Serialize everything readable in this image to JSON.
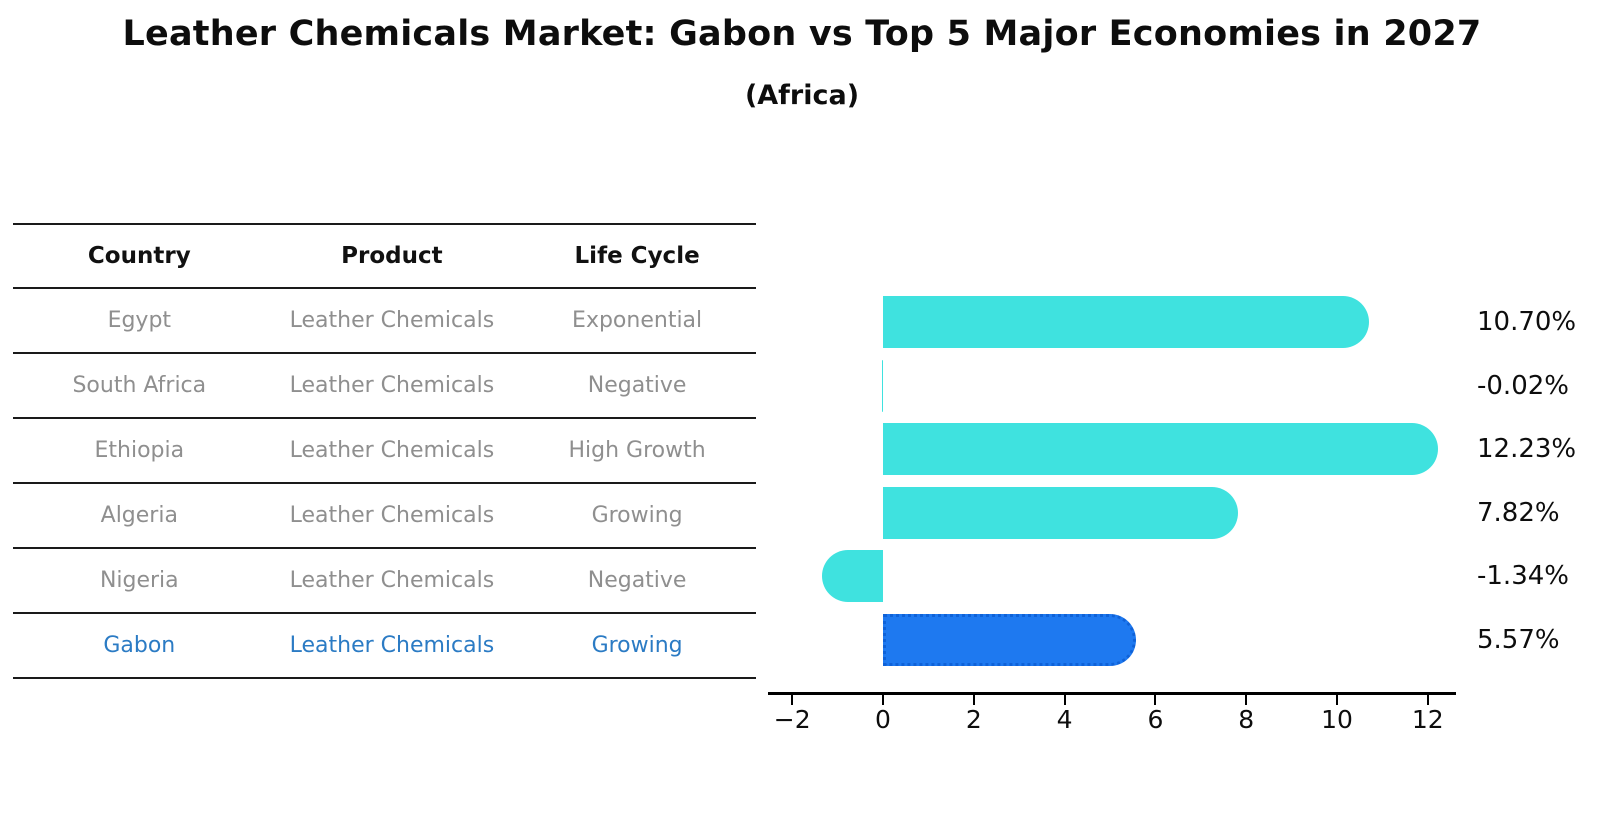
{
  "title": "Leather Chemicals Market: Gabon vs Top 5 Major Economies in 2027",
  "subtitle": "(Africa)",
  "table": {
    "headers": [
      "Country",
      "Product",
      "Life Cycle"
    ],
    "rows": [
      {
        "country": "Egypt",
        "product": "Leather Chemicals",
        "life_cycle": "Exponential",
        "highlight": false
      },
      {
        "country": "South Africa",
        "product": "Leather Chemicals",
        "life_cycle": "Negative",
        "highlight": false
      },
      {
        "country": "Ethiopia",
        "product": "Leather Chemicals",
        "life_cycle": "High Growth",
        "highlight": false
      },
      {
        "country": "Algeria",
        "product": "Leather Chemicals",
        "life_cycle": "Growing",
        "highlight": false
      },
      {
        "country": "Nigeria",
        "product": "Leather Chemicals",
        "life_cycle": "Negative",
        "highlight": false
      },
      {
        "country": "Gabon",
        "product": "Leather Chemicals",
        "life_cycle": "Growing",
        "highlight": true
      }
    ]
  },
  "chart_data": {
    "type": "bar",
    "orientation": "horizontal",
    "title": "Leather Chemicals Market: Gabon vs Top 5 Major Economies in 2027",
    "subtitle": "(Africa)",
    "categories": [
      "Egypt",
      "South Africa",
      "Ethiopia",
      "Algeria",
      "Nigeria",
      "Gabon"
    ],
    "values": [
      10.7,
      -0.02,
      12.23,
      7.82,
      -1.34,
      5.57
    ],
    "value_labels": [
      "10.70%",
      "-0.02%",
      "12.23%",
      "7.82%",
      "-1.34%",
      "5.57%"
    ],
    "highlight_index": 5,
    "xticks": [
      -2,
      0,
      2,
      4,
      6,
      8,
      10,
      12
    ],
    "xtick_labels": [
      "−2",
      "0",
      "2",
      "4",
      "6",
      "8",
      "10",
      "12"
    ],
    "xlim": [
      -2.55,
      12.65
    ],
    "grid": false,
    "legend": false,
    "colors": {
      "bar": "#3FE2DF",
      "highlight_bar": "#1E79F0",
      "highlight_border": "#0F62D8",
      "highlight_text": "#2B7BC4",
      "axis": "#000000",
      "row_text": "#8F8F8F",
      "header_text": "#111111"
    }
  }
}
